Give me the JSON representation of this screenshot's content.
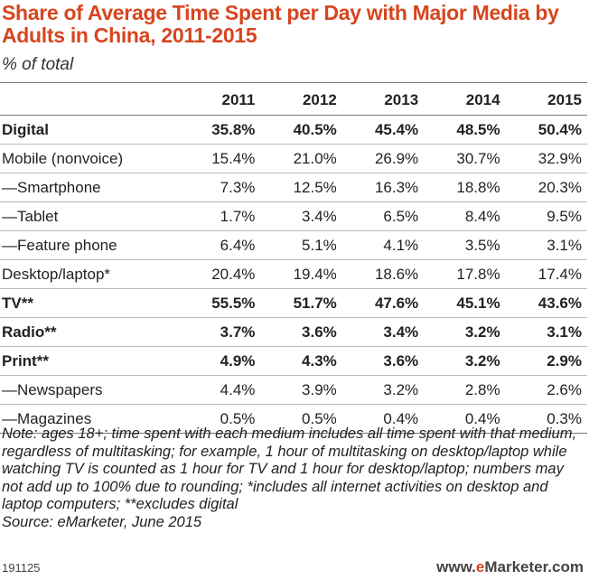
{
  "chart_data": {
    "type": "table",
    "title": "Share of Average Time Spent per Day with Major Media by Adults in China, 2011-2015",
    "subtitle": "% of total",
    "columns": [
      "2011",
      "2012",
      "2013",
      "2014",
      "2015"
    ],
    "rows": [
      {
        "label": "Digital",
        "bold": true,
        "values": [
          "35.8%",
          "40.5%",
          "45.4%",
          "48.5%",
          "50.4%"
        ]
      },
      {
        "label": "Mobile (nonvoice)",
        "bold": false,
        "values": [
          "15.4%",
          "21.0%",
          "26.9%",
          "30.7%",
          "32.9%"
        ]
      },
      {
        "label": "—Smartphone",
        "bold": false,
        "values": [
          "7.3%",
          "12.5%",
          "16.3%",
          "18.8%",
          "20.3%"
        ]
      },
      {
        "label": "—Tablet",
        "bold": false,
        "values": [
          "1.7%",
          "3.4%",
          "6.5%",
          "8.4%",
          "9.5%"
        ]
      },
      {
        "label": "—Feature phone",
        "bold": false,
        "values": [
          "6.4%",
          "5.1%",
          "4.1%",
          "3.5%",
          "3.1%"
        ]
      },
      {
        "label": "Desktop/laptop*",
        "bold": false,
        "values": [
          "20.4%",
          "19.4%",
          "18.6%",
          "17.8%",
          "17.4%"
        ]
      },
      {
        "label": "TV**",
        "bold": true,
        "values": [
          "55.5%",
          "51.7%",
          "47.6%",
          "45.1%",
          "43.6%"
        ]
      },
      {
        "label": "Radio**",
        "bold": true,
        "values": [
          "3.7%",
          "3.6%",
          "3.4%",
          "3.2%",
          "3.1%"
        ]
      },
      {
        "label": "Print**",
        "bold": true,
        "values": [
          "4.9%",
          "4.3%",
          "3.6%",
          "3.2%",
          "2.9%"
        ]
      },
      {
        "label": "—Newspapers",
        "bold": false,
        "values": [
          "4.4%",
          "3.9%",
          "3.2%",
          "2.8%",
          "2.6%"
        ]
      },
      {
        "label": "—Magazines",
        "bold": false,
        "values": [
          "0.5%",
          "0.5%",
          "0.4%",
          "0.4%",
          "0.3%"
        ]
      }
    ],
    "note": "Note: ages 18+; time spent with each medium includes all time spent with that medium, regardless of multitasking; for example, 1 hour of multitasking on desktop/laptop while watching TV is counted as 1 hour for TV and 1 hour for desktop/laptop; numbers may not add up to 100% due to rounding; *includes all internet activities on desktop and laptop computers; **excludes digital",
    "source": "Source: eMarketer, June 2015",
    "chart_id": "191125",
    "brand_prefix": "www.",
    "brand_accent": "e",
    "brand_suffix": "Marketer.com"
  }
}
